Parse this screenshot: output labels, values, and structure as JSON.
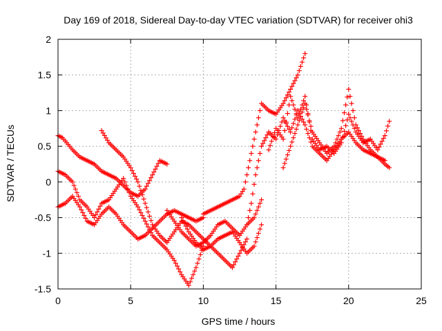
{
  "chart_data": {
    "type": "scatter",
    "title": "Day 169 of 2018, Sidereal Day-to-day VTEC variation (SDTVAR) for receiver ohi3",
    "xlabel": "GPS time / hours",
    "ylabel": "SDTVAR / TECUs",
    "xlim": [
      0,
      25
    ],
    "ylim": [
      -1.5,
      2
    ],
    "xticks": [
      0,
      5,
      10,
      15,
      20,
      25
    ],
    "yticks": [
      -1.5,
      -1,
      -0.5,
      0,
      0.5,
      1,
      1.5,
      2
    ],
    "xtick_labels": [
      "0",
      "5",
      "10",
      "15",
      "20",
      "25"
    ],
    "ytick_labels": [
      "-1.5",
      "-1",
      "-0.5",
      "0",
      "0.5",
      "1",
      "1.5",
      "2"
    ],
    "grid": true,
    "marker": "+",
    "color": "#ff0000",
    "series": [
      {
        "x": [
          0.0,
          0.3,
          0.6,
          1.0,
          1.5,
          2.0,
          2.5,
          3.0,
          3.5,
          4.0,
          4.5,
          5.0,
          5.5,
          6.0,
          6.5,
          7.0,
          7.5
        ],
        "y": [
          0.65,
          0.62,
          0.55,
          0.45,
          0.35,
          0.3,
          0.25,
          0.15,
          0.1,
          0.05,
          -0.05,
          -0.15,
          -0.2,
          -0.1,
          0.1,
          0.3,
          0.25
        ]
      },
      {
        "x": [
          0.0,
          0.5,
          1.0,
          1.5,
          2.0,
          2.5,
          3.0,
          3.5,
          4.0,
          4.5,
          5.0,
          5.5,
          6.0,
          6.5,
          7.0,
          7.5,
          8.0,
          8.5,
          9.0,
          9.5,
          10.0
        ],
        "y": [
          0.15,
          0.1,
          0.0,
          -0.25,
          -0.35,
          -0.5,
          -0.3,
          -0.25,
          -0.1,
          0.05,
          -0.2,
          -0.35,
          -0.55,
          -0.75,
          -0.85,
          -0.95,
          -1.1,
          -1.3,
          -1.45,
          -1.2,
          -0.9
        ]
      },
      {
        "x": [
          0.0,
          0.5,
          1.0,
          1.5,
          2.0,
          2.5,
          3.0,
          3.5,
          4.0,
          4.5,
          5.0,
          5.5,
          6.0,
          6.5,
          7.0,
          7.5,
          8.0,
          8.5,
          9.0,
          9.5,
          10.0
        ],
        "y": [
          -0.35,
          -0.3,
          -0.2,
          -0.35,
          -0.55,
          -0.6,
          -0.45,
          -0.35,
          -0.45,
          -0.6,
          -0.7,
          -0.8,
          -0.75,
          -0.65,
          -0.55,
          -0.45,
          -0.4,
          -0.45,
          -0.5,
          -0.55,
          -0.5
        ]
      },
      {
        "x": [
          3.0,
          3.5,
          4.0,
          4.5,
          5.0,
          5.5,
          6.0,
          6.5,
          7.0,
          7.5,
          8.0,
          8.5,
          9.0,
          9.5,
          10.0,
          10.5,
          11.0,
          11.5,
          12.0,
          12.5,
          13.0
        ],
        "y": [
          0.72,
          0.55,
          0.45,
          0.35,
          0.2,
          0.0,
          -0.3,
          -0.6,
          -0.75,
          -0.85,
          -0.7,
          -0.55,
          -0.6,
          -0.7,
          -0.8,
          -0.9,
          -1.0,
          -1.1,
          -1.2,
          -1.0,
          -0.8
        ]
      },
      {
        "x": [
          7.5,
          8.0,
          8.5,
          9.0,
          9.5,
          10.0,
          10.5,
          11.0,
          11.5,
          12.0,
          12.5,
          13.0,
          13.5,
          14.0
        ],
        "y": [
          -0.4,
          -0.55,
          -0.7,
          -0.8,
          -0.9,
          -0.85,
          -0.75,
          -0.6,
          -0.55,
          -0.65,
          -0.75,
          -0.6,
          -0.5,
          -0.25
        ]
      },
      {
        "x": [
          8.5,
          9.0,
          9.5,
          10.0,
          10.5,
          11.0,
          11.5,
          12.0,
          12.5,
          13.0,
          13.5,
          14.0
        ],
        "y": [
          -0.5,
          -0.7,
          -0.85,
          -0.95,
          -0.9,
          -0.8,
          -0.75,
          -0.7,
          -0.85,
          -1.0,
          -0.9,
          -0.6
        ]
      },
      {
        "x": [
          10.0,
          10.5,
          11.0,
          11.5,
          12.0,
          12.5,
          12.8,
          13.0,
          13.2,
          13.5,
          13.8,
          14.0,
          14.5,
          15.0,
          15.5,
          16.0,
          16.5,
          17.0
        ],
        "y": [
          -0.45,
          -0.4,
          -0.35,
          -0.3,
          -0.25,
          -0.2,
          -0.1,
          0.1,
          0.3,
          0.6,
          0.9,
          1.1,
          1.0,
          0.95,
          1.1,
          1.3,
          1.5,
          1.8
        ]
      },
      {
        "x": [
          13.0,
          13.3,
          13.6,
          14.0,
          14.5,
          15.0,
          15.5,
          16.0,
          16.5,
          17.0,
          17.5,
          18.0,
          18.5,
          19.0,
          19.5,
          20.0,
          20.5,
          21.0,
          21.5,
          22.0,
          22.5,
          22.8
        ],
        "y": [
          -0.6,
          -0.3,
          0.1,
          0.5,
          0.7,
          0.6,
          0.9,
          0.7,
          1.0,
          0.8,
          0.5,
          0.4,
          0.3,
          0.45,
          0.6,
          0.7,
          0.55,
          0.45,
          0.4,
          0.35,
          0.25,
          0.2
        ]
      },
      {
        "x": [
          14.5,
          15.0,
          15.5,
          16.0,
          16.5,
          17.0,
          17.5,
          18.0,
          18.5,
          19.0,
          19.5,
          20.0,
          20.5,
          21.0,
          21.5,
          22.0,
          22.5,
          22.8
        ],
        "y": [
          0.45,
          0.75,
          0.6,
          1.2,
          0.9,
          1.2,
          0.6,
          0.45,
          0.5,
          0.4,
          0.55,
          0.95,
          0.7,
          0.55,
          0.6,
          0.45,
          0.65,
          0.85
        ]
      },
      {
        "x": [
          15.5,
          16.0,
          16.5,
          17.0,
          17.5,
          18.0,
          18.5,
          19.0,
          19.5,
          20.0,
          20.5,
          21.0,
          21.5,
          22.0,
          22.5
        ],
        "y": [
          0.2,
          0.5,
          0.8,
          1.1,
          0.7,
          0.55,
          0.4,
          0.5,
          0.75,
          1.3,
          0.8,
          0.6,
          0.45,
          0.35,
          0.3
        ]
      }
    ]
  }
}
